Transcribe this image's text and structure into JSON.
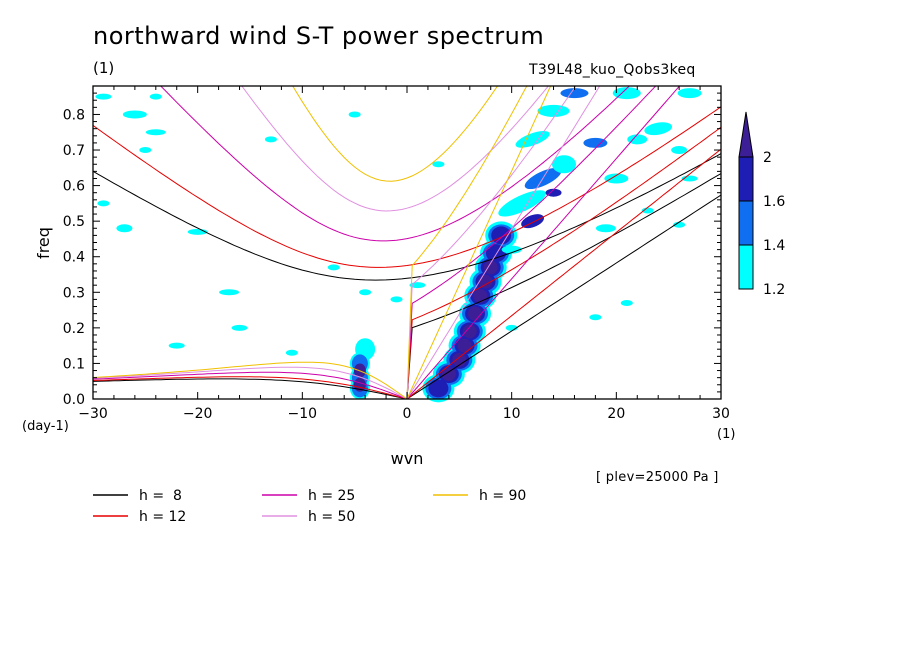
{
  "chart_data": {
    "type": "contour",
    "title": "northward wind S-T power spectrum",
    "subtitle_left": "(1)",
    "subtitle_right": "T39L48_kuo_Qobs3keq",
    "xlabel": "wvn",
    "ylabel": "freq",
    "x_units": "(1)",
    "y_units": "(day-1)",
    "xlim": [
      -30,
      30
    ],
    "ylim": [
      0,
      0.88
    ],
    "xticks": [
      -30,
      -20,
      -10,
      0,
      10,
      20,
      30
    ],
    "yticks": [
      0,
      0.1,
      0.2,
      0.3,
      0.4,
      0.5,
      0.6,
      0.7,
      0.8
    ],
    "annotation": "[ plev=25000 Pa ]",
    "colorbar": {
      "levels": [
        1.2,
        1.4,
        1.6,
        2
      ],
      "colors": [
        "#00ffff",
        "#0f6ff0",
        "#1e1eb4",
        "#3c1e96"
      ]
    },
    "equivalent_depths": [
      {
        "name": "h =  8",
        "h": 8,
        "color": "#000000"
      },
      {
        "name": "h = 12",
        "h": 12,
        "color": "#e60000"
      },
      {
        "name": "h = 25",
        "h": 25,
        "color": "#cc00aa"
      },
      {
        "name": "h = 50",
        "h": 50,
        "color": "#e090e0"
      },
      {
        "name": "h = 90",
        "h": 90,
        "color": "#f0c000"
      }
    ]
  }
}
